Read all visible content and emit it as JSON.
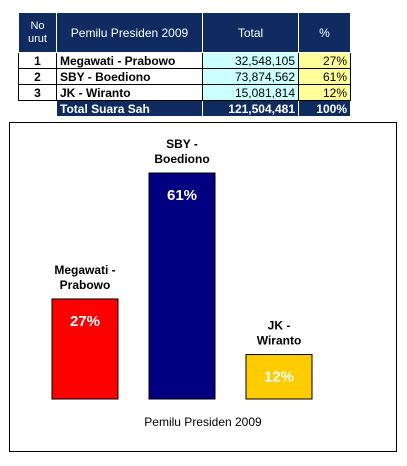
{
  "table": {
    "headers": {
      "no": [
        "No",
        "urut"
      ],
      "title": "Pemilu Presiden 2009",
      "total": "Total",
      "pct": "%"
    },
    "rows": [
      {
        "no": "1",
        "name": "Megawati - Prabowo",
        "total": "32,548,105",
        "pct": "27%"
      },
      {
        "no": "2",
        "name": "SBY - Boediono",
        "total": "73,874,562",
        "pct": "61%"
      },
      {
        "no": "3",
        "name": "JK - Wiranto",
        "total": "15,081,814",
        "pct": "12%"
      }
    ],
    "summary": {
      "label": "Total Suara Sah",
      "total": "121,504,481",
      "pct": "100%"
    }
  },
  "chart_data": {
    "type": "bar",
    "categories": [
      "Megawati - Prabowo",
      "SBY - Boediono",
      "JK - Wiranto"
    ],
    "category_lines": [
      [
        "Megawati -",
        "Prabowo"
      ],
      [
        "SBY -",
        "Boediono"
      ],
      [
        "JK -",
        "Wiranto"
      ]
    ],
    "values": [
      27,
      61,
      12
    ],
    "value_labels": [
      "27%",
      "61%",
      "12%"
    ],
    "colors": [
      "#ff0000",
      "#000080",
      "#ffcc00"
    ],
    "xlabel": "Pemilu Presiden 2009",
    "ylim": [
      0,
      61
    ],
    "grid": false,
    "legend": "none"
  }
}
